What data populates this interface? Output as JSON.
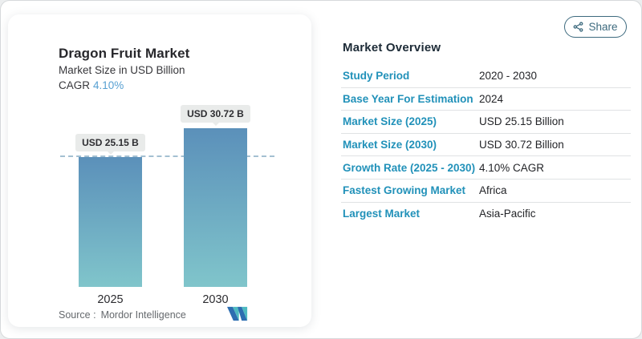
{
  "chart_card": {
    "title": "Dragon Fruit Market",
    "subtitle": "Market Size in USD Billion",
    "cagr_label": "CAGR",
    "cagr_value": "4.10%",
    "source_label": "Source :",
    "source_name": "Mordor Intelligence",
    "logo_icon": "mordor-intelligence-logo"
  },
  "chart_data": {
    "type": "bar",
    "title": "Dragon Fruit Market",
    "ylabel": "Market Size in USD Billion",
    "categories": [
      "2025",
      "2030"
    ],
    "values": [
      25.15,
      30.72
    ],
    "value_labels": [
      "USD 25.15 B",
      "USD 30.72 B"
    ],
    "ylim": [
      0,
      30.72
    ],
    "reference_line_value": 25.15,
    "reference_line_style": "dashed",
    "grid": false,
    "bar_color_top": "#5b90ba",
    "bar_color_bottom": "#80c5cb"
  },
  "share": {
    "label": "Share",
    "icon": "share-nodes-icon"
  },
  "overview": {
    "heading": "Market Overview",
    "rows": [
      {
        "label": "Study Period",
        "value": "2020 - 2030"
      },
      {
        "label": "Base Year For Estimation",
        "value": "2024"
      },
      {
        "label": "Market Size (2025)",
        "value": "USD 25.15 Billion"
      },
      {
        "label": "Market Size (2030)",
        "value": "USD 30.72 Billion"
      },
      {
        "label": "Growth Rate (2025 - 2030)",
        "value": "4.10% CAGR"
      },
      {
        "label": "Fastest Growing Market",
        "value": "Africa"
      },
      {
        "label": "Largest Market",
        "value": "Asia-Pacific"
      }
    ]
  },
  "colors": {
    "accent_blue": "#58a0d2",
    "label_teal": "#2191b9",
    "share_teal": "#3d6a7e",
    "heading_navy": "#1d2b37",
    "logo_blue": "#2d6db0",
    "logo_teal": "#4ebac1"
  }
}
